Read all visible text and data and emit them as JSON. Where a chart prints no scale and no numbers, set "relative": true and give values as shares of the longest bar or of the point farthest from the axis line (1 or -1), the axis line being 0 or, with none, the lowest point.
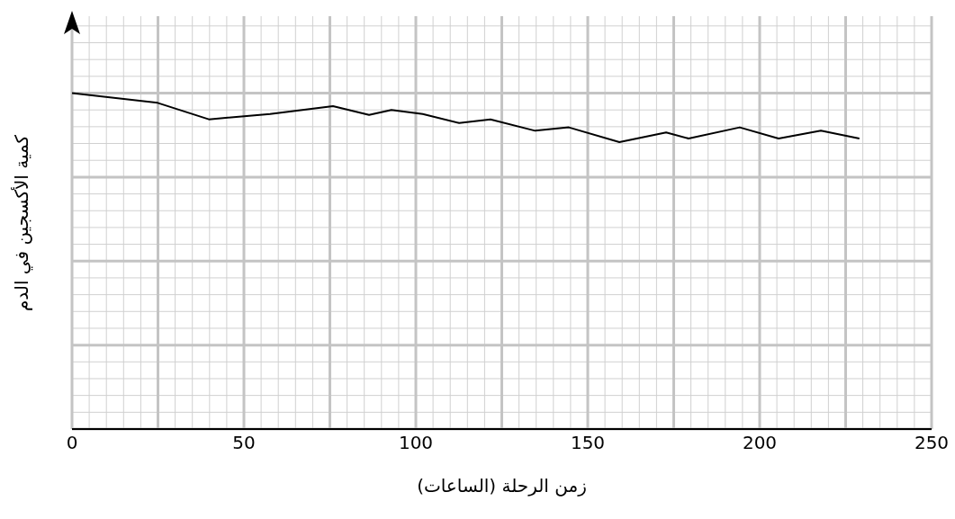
{
  "chart_data": {
    "type": "line",
    "xlabel": "زمن الرحلة (الساعات)",
    "ylabel": "كمية الأكسجين في الدم",
    "relative": true,
    "xlim": [
      0,
      250
    ],
    "xticks": [
      0,
      50,
      100,
      150,
      200,
      250
    ],
    "grid": true,
    "marker": "none",
    "line_style": "solid",
    "series": [
      {
        "color": "#000000",
        "x": [
          0,
          24.9,
          39.8,
          57.6,
          75.9,
          86.4,
          92.9,
          102,
          112.6,
          121.7,
          134.7,
          144.5,
          159.2,
          172.8,
          179.3,
          194.2,
          205.5,
          217.8,
          229
        ],
        "values": [
          1,
          0.971,
          0.922,
          0.938,
          0.961,
          0.935,
          0.95,
          0.938,
          0.911,
          0.922,
          0.888,
          0.898,
          0.854,
          0.883,
          0.865,
          0.898,
          0.865,
          0.888,
          0.865
        ]
      }
    ]
  }
}
